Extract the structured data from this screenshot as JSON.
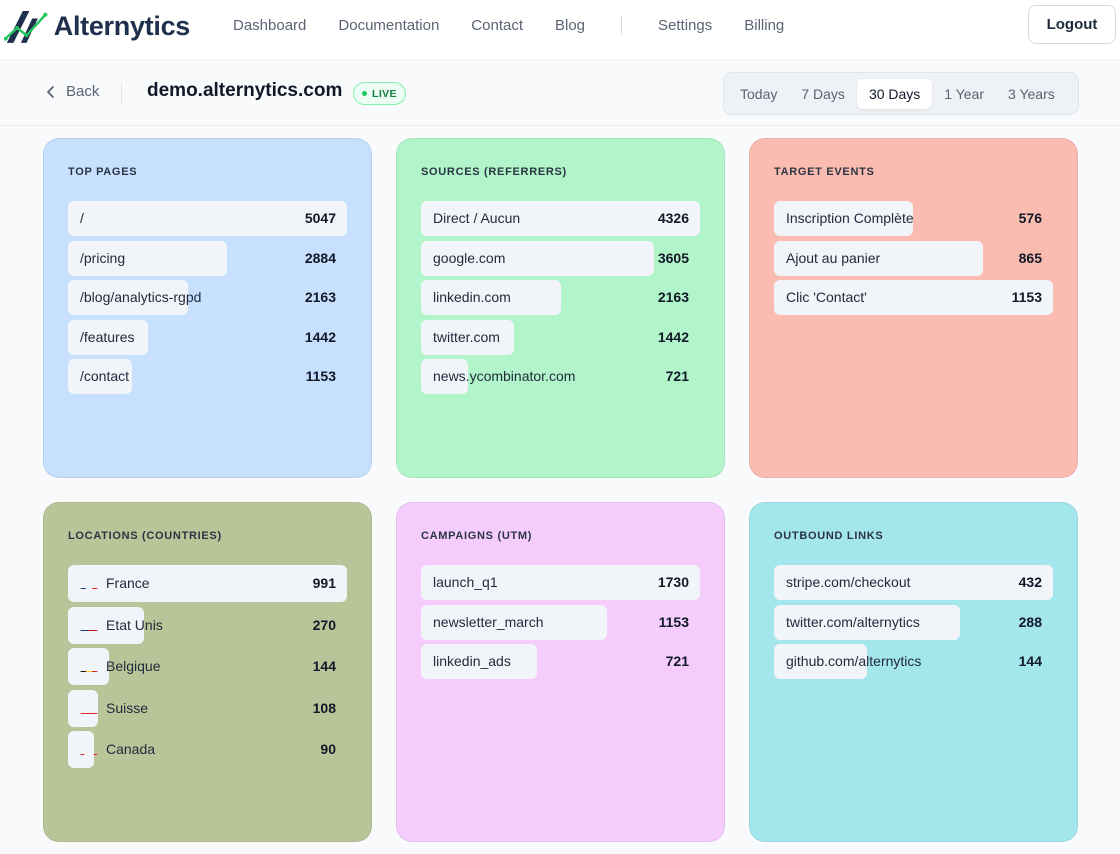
{
  "brand": {
    "name": "Alternytics"
  },
  "nav": {
    "links": [
      "Dashboard",
      "Documentation",
      "Contact",
      "Blog"
    ],
    "links2": [
      "Settings",
      "Billing"
    ],
    "logout": "Logout"
  },
  "subheader": {
    "back": "Back",
    "domain": "demo.alternytics.com",
    "live": "LIVE",
    "ranges": [
      "Today",
      "7 Days",
      "30 Days",
      "1 Year",
      "3 Years"
    ],
    "active_range": "30 Days"
  },
  "cards": {
    "top_pages": {
      "title": "TOP PAGES",
      "color": "#c6e0fd",
      "rows": [
        {
          "label": "/",
          "value": 5047
        },
        {
          "label": "/pricing",
          "value": 2884
        },
        {
          "label": "/blog/analytics-rgpd",
          "value": 2163
        },
        {
          "label": "/features",
          "value": 1442
        },
        {
          "label": "/contact",
          "value": 1153
        }
      ]
    },
    "sources": {
      "title": "SOURCES (REFERRERS)",
      "color": "#b2f5cb",
      "rows": [
        {
          "label": "Direct / Aucun",
          "value": 4326
        },
        {
          "label": "google.com",
          "value": 3605
        },
        {
          "label": "linkedin.com",
          "value": 2163
        },
        {
          "label": "twitter.com",
          "value": 1442
        },
        {
          "label": "news.ycombinator.com",
          "value": 721
        }
      ]
    },
    "target_events": {
      "title": "TARGET EVENTS",
      "color": "#fabcb0",
      "rows": [
        {
          "label": "Inscription Complète",
          "value": 576
        },
        {
          "label": "Ajout au panier",
          "value": 865
        },
        {
          "label": "Clic 'Contact'",
          "value": 1153
        }
      ]
    },
    "locations": {
      "title": "LOCATIONS (COUNTRIES)",
      "color": "#b9c598",
      "rows": [
        {
          "label": "France",
          "value": 991,
          "flag": "fr"
        },
        {
          "label": "Etat Unis",
          "value": 270,
          "flag": "us"
        },
        {
          "label": "Belgique",
          "value": 144,
          "flag": "be"
        },
        {
          "label": "Suisse",
          "value": 108,
          "flag": "ch"
        },
        {
          "label": "Canada",
          "value": 90,
          "flag": "ca"
        }
      ]
    },
    "campaigns": {
      "title": "CAMPAIGNS (UTM)",
      "color": "#f4cdfc",
      "rows": [
        {
          "label": "launch_q1",
          "value": 1730
        },
        {
          "label": "newsletter_march",
          "value": 1153
        },
        {
          "label": "linkedin_ads",
          "value": 721
        }
      ]
    },
    "outbound": {
      "title": "OUTBOUND LINKS",
      "color": "#a3e6ec",
      "rows": [
        {
          "label": "stripe.com/checkout",
          "value": 432
        },
        {
          "label": "twitter.com/alternytics",
          "value": 288
        },
        {
          "label": "github.com/alternytics",
          "value": 144
        }
      ]
    }
  }
}
